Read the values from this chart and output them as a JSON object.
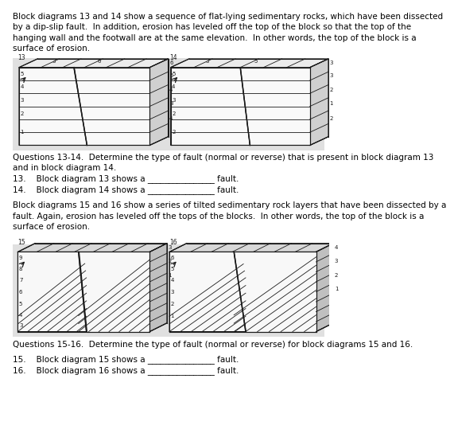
{
  "page_bg": "#ffffff",
  "panel_bg": "#e0e0e0",
  "lc": "#1a1a1a",
  "para1": "Block diagrams 13 and 14 show a sequence of flat-lying sedimentary rocks, which have been dissected\nby a dip-slip fault.  In addition, erosion has leveled off the top of the block so that the top of the\nhanging wall and the footwall are at the same elevation.  In other words, the top of the block is a\nsurface of erosion.",
  "para2": "Questions 13-14.  Determine the type of fault (normal or reverse) that is present in block diagram 13\nand in block diagram 14.",
  "q13": "13.    Block diagram 13 shows a ________________ fault.",
  "q14": "14.    Block diagram 14 shows a ________________ fault.",
  "para3": "Block diagrams 15 and 16 show a series of tilted sedimentary rock layers that have been dissected by a\nfault. Again, erosion has leveled off the tops of the blocks.  In other words, the top of the block is a\nsurface of erosion.",
  "para4": "Questions 15-16.  Determine the type of fault (normal or reverse) for block diagrams 15 and 16.",
  "q15": "15.    Block diagram 15 shows a ________________ fault.",
  "q16": "16.    Block diagram 16 shows a ________________ fault.",
  "text_fs": 7.5,
  "label_fs": 5.0,
  "num_fs": 5.5
}
